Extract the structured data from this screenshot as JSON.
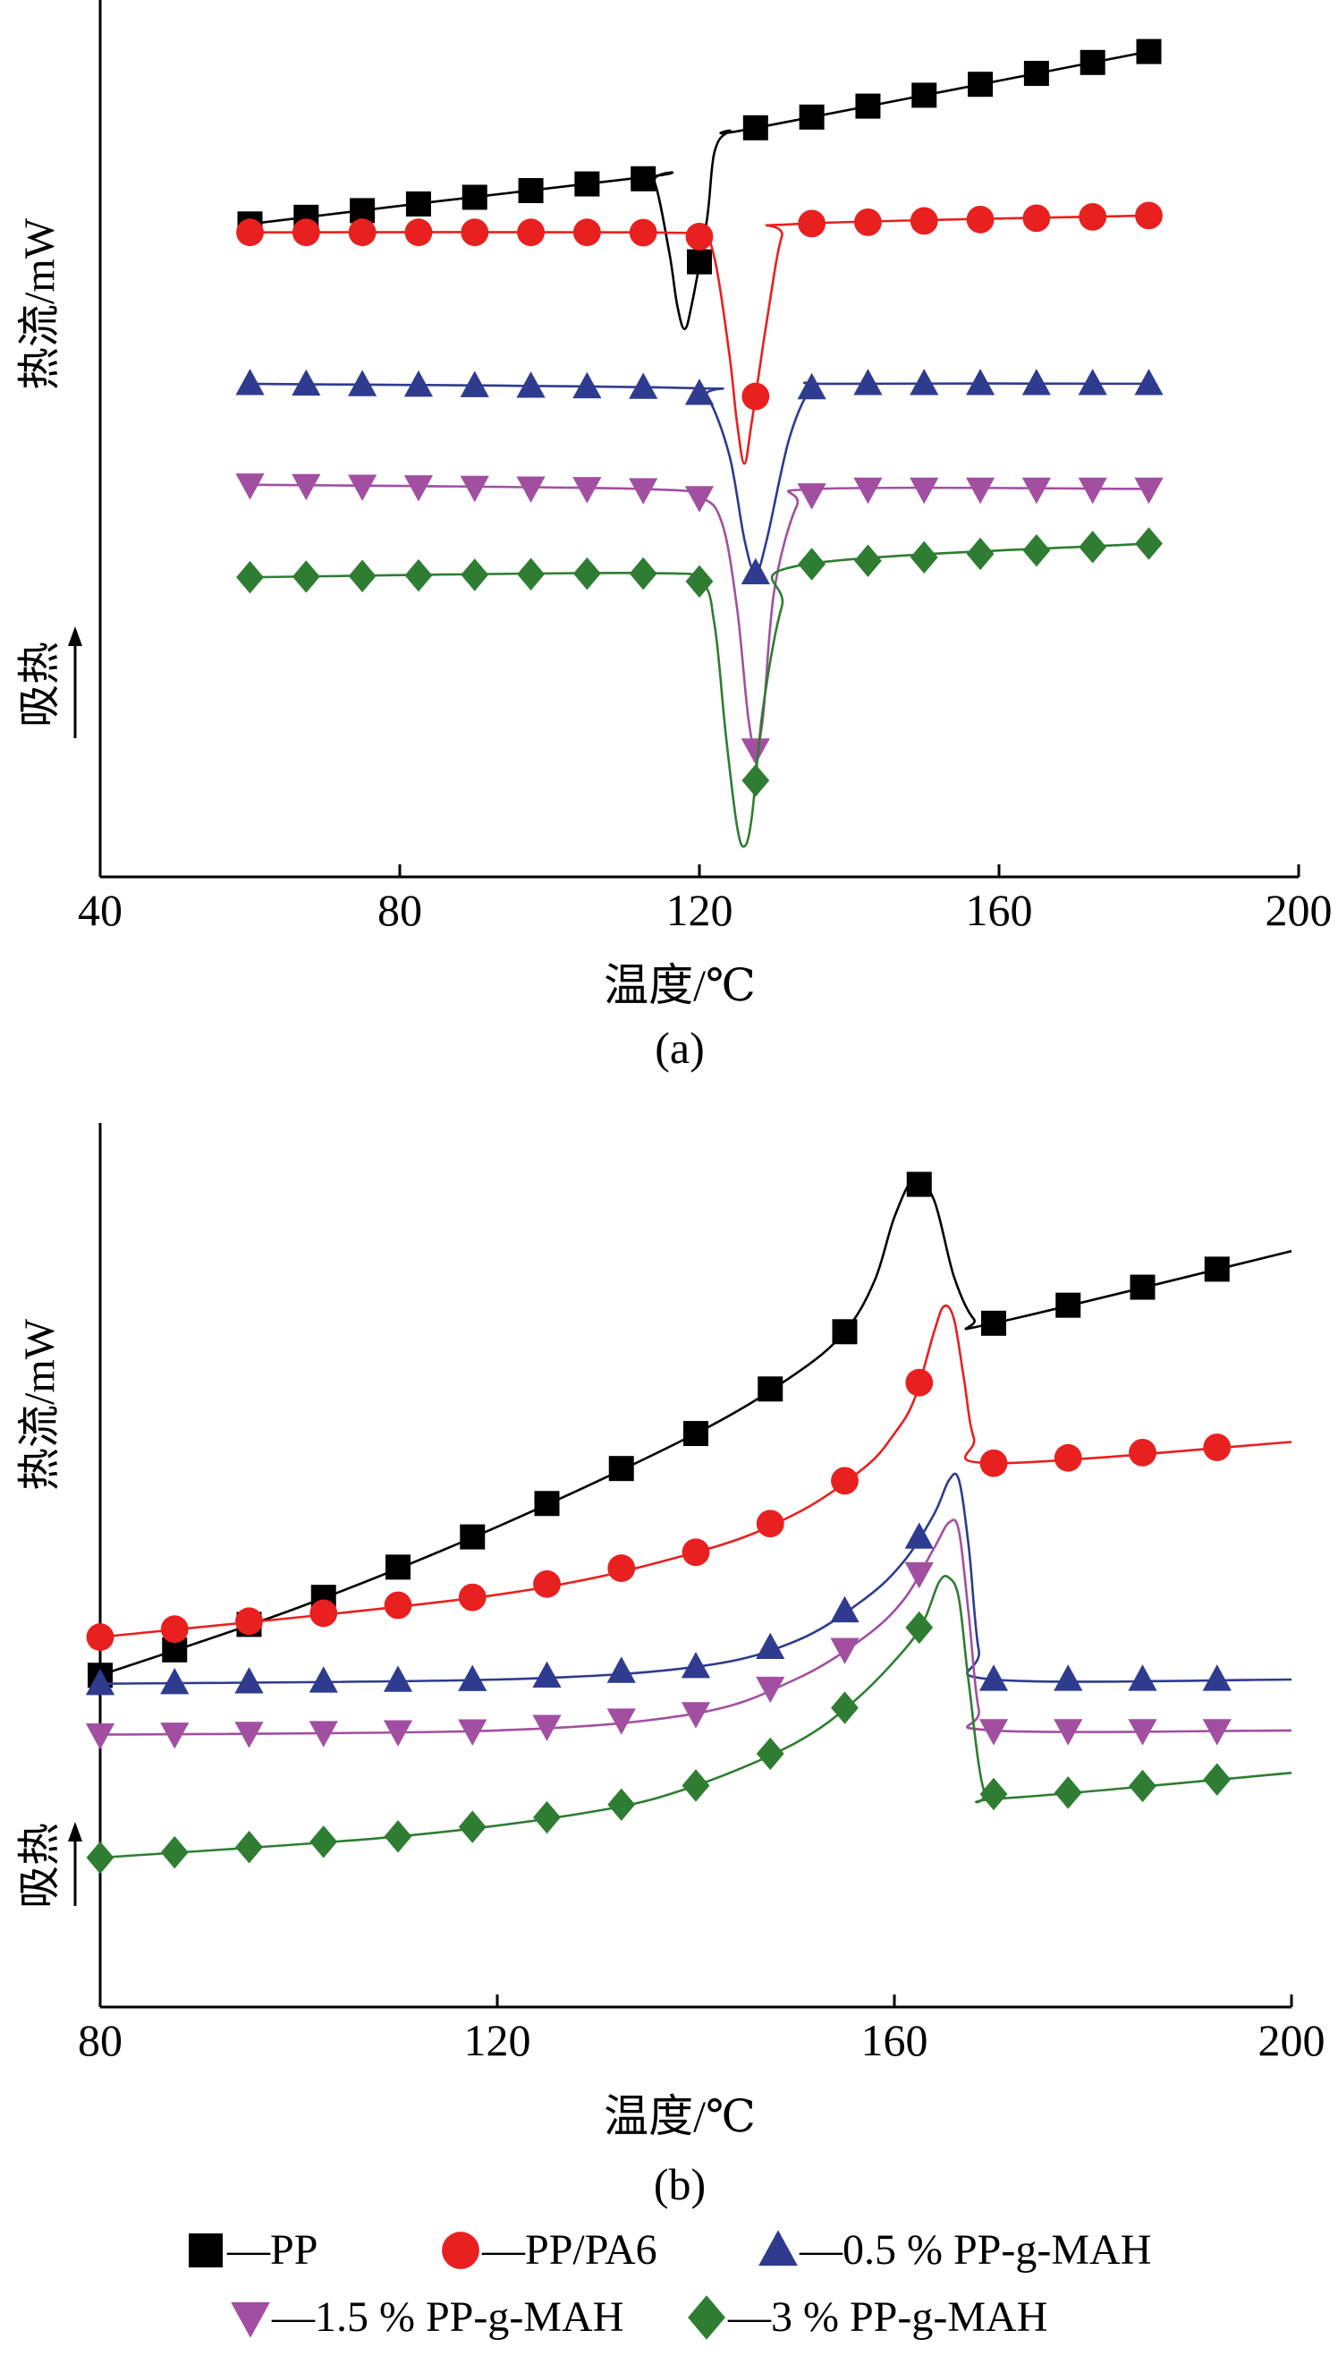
{
  "colors": {
    "PP": "#000000",
    "PP/PA6": "#e8201f",
    "0.5 % PP-g-MAH": "#2e3b8f",
    "1.5 % PP-g-MAH": "#a24fa1",
    "3 % PP-g-MAH": "#2e7d32"
  },
  "markers": {
    "PP": "square",
    "PP/PA6": "circle",
    "0.5 % PP-g-MAH": "triangle-up",
    "1.5 % PP-g-MAH": "triangle-down",
    "3 % PP-g-MAH": "diamond"
  },
  "legend": {
    "entries": [
      "PP",
      "PP/PA6",
      "0.5 % PP-g-MAH",
      "1.5 % PP-g-MAH",
      "3 % PP-g-MAH"
    ],
    "prefix": "—"
  },
  "chart_data": [
    {
      "type": "line",
      "panel": "(a)",
      "xlabel": "温度/℃",
      "ylabel": "热流/mW",
      "endo_label": "吸热",
      "xlim": [
        40,
        200
      ],
      "xticks": [
        40,
        80,
        120,
        160,
        200
      ],
      "ylim": [
        0,
        1
      ],
      "y_tick_labels": false,
      "grid": false,
      "series": [
        {
          "name": "PP",
          "points": [
            [
              60,
              0.755
            ],
            [
              112,
              0.81
            ],
            [
              114,
              0.805
            ],
            [
              116,
              0.72
            ],
            [
              117,
              0.66
            ],
            [
              118,
              0.63
            ],
            [
              119,
              0.66
            ],
            [
              121,
              0.76
            ],
            [
              122,
              0.84
            ],
            [
              124,
              0.865
            ],
            [
              128,
              0.87
            ],
            [
              180,
              0.96
            ]
          ],
          "marker_x": [
            60,
            67.5,
            75,
            82.5,
            90,
            97.5,
            105,
            112.5,
            120,
            127.5,
            135,
            142.5,
            150,
            157.5,
            165,
            172.5,
            180
          ]
        },
        {
          "name": "PP/PA6",
          "points": [
            [
              60,
              0.745
            ],
            [
              112,
              0.745
            ],
            [
              120,
              0.74
            ],
            [
              122,
              0.715
            ],
            [
              124,
              0.6
            ],
            [
              125,
              0.52
            ],
            [
              126,
              0.47
            ],
            [
              127,
              0.52
            ],
            [
              129,
              0.64
            ],
            [
              131,
              0.74
            ],
            [
              133,
              0.755
            ],
            [
              180,
              0.765
            ]
          ],
          "marker_x": [
            60,
            67.5,
            75,
            82.5,
            90,
            97.5,
            105,
            112.5,
            120,
            127.5,
            135,
            142.5,
            150,
            157.5,
            165,
            172.5,
            180
          ]
        },
        {
          "name": "0.5 % PP-g-MAH",
          "points": [
            [
              60,
              0.565
            ],
            [
              118,
              0.56
            ],
            [
              121,
              0.55
            ],
            [
              124,
              0.48
            ],
            [
              126,
              0.38
            ],
            [
              127.5,
              0.34
            ],
            [
              129,
              0.38
            ],
            [
              132,
              0.5
            ],
            [
              135,
              0.56
            ],
            [
              138,
              0.565
            ],
            [
              180,
              0.565
            ]
          ],
          "marker_x": [
            60,
            67.5,
            75,
            82.5,
            90,
            97.5,
            105,
            112.5,
            120,
            127.5,
            135,
            142.5,
            150,
            157.5,
            165,
            172.5,
            180
          ]
        },
        {
          "name": "1.5 % PP-g-MAH",
          "points": [
            [
              60,
              0.445
            ],
            [
              112,
              0.44
            ],
            [
              120,
              0.43
            ],
            [
              123,
              0.4
            ],
            [
              125,
              0.3
            ],
            [
              126.5,
              0.17
            ],
            [
              127.5,
              0.13
            ],
            [
              128.5,
              0.17
            ],
            [
              130,
              0.32
            ],
            [
              133,
              0.42
            ],
            [
              136,
              0.44
            ],
            [
              180,
              0.44
            ]
          ],
          "marker_x": [
            60,
            67.5,
            75,
            82.5,
            90,
            97.5,
            105,
            112.5,
            120,
            127.5,
            135,
            142.5,
            150,
            157.5,
            165,
            172.5,
            180
          ]
        },
        {
          "name": "3 % PP-g-MAH",
          "points": [
            [
              60,
              0.335
            ],
            [
              112,
              0.34
            ],
            [
              120,
              0.33
            ],
            [
              122,
              0.28
            ],
            [
              123.5,
              0.15
            ],
            [
              125,
              0.04
            ],
            [
              126,
              0.015
            ],
            [
              127,
              0.05
            ],
            [
              128.5,
              0.18
            ],
            [
              131,
              0.3
            ],
            [
              134,
              0.35
            ],
            [
              180,
              0.375
            ]
          ],
          "marker_x": [
            60,
            67.5,
            75,
            82.5,
            90,
            97.5,
            105,
            112.5,
            120,
            127.5,
            135,
            142.5,
            150,
            157.5,
            165,
            172.5,
            180
          ]
        }
      ]
    },
    {
      "type": "line",
      "panel": "(b)",
      "xlabel": "温度/℃",
      "ylabel": "热流/mW",
      "endo_label": "吸热",
      "xlim": [
        80,
        200
      ],
      "xticks": [
        80,
        120,
        160,
        200
      ],
      "ylim": [
        0,
        1
      ],
      "y_tick_labels": false,
      "grid": false,
      "series": [
        {
          "name": "PP",
          "points": [
            [
              80,
              0.37
            ],
            [
              100,
              0.45
            ],
            [
              120,
              0.545
            ],
            [
              140,
              0.655
            ],
            [
              150,
              0.725
            ],
            [
              155,
              0.775
            ],
            [
              158,
              0.835
            ],
            [
              160,
              0.91
            ],
            [
              162,
              0.955
            ],
            [
              164,
              0.93
            ],
            [
              166,
              0.84
            ],
            [
              168,
              0.79
            ],
            [
              170,
              0.785
            ],
            [
              200,
              0.87
            ]
          ],
          "marker_x": [
            80,
            87.5,
            95,
            102.5,
            110,
            117.5,
            125,
            132.5,
            140,
            147.5,
            155,
            162.5,
            170,
            177.5,
            185,
            192.5
          ]
        },
        {
          "name": "PP/PA6",
          "points": [
            [
              80,
              0.415
            ],
            [
              120,
              0.465
            ],
            [
              140,
              0.515
            ],
            [
              150,
              0.56
            ],
            [
              157,
              0.615
            ],
            [
              160,
              0.655
            ],
            [
              162,
              0.695
            ],
            [
              164,
              0.775
            ],
            [
              165,
              0.805
            ],
            [
              166,
              0.79
            ],
            [
              167,
              0.72
            ],
            [
              168,
              0.65
            ],
            [
              170,
              0.62
            ],
            [
              200,
              0.645
            ]
          ],
          "marker_x": [
            80,
            87.5,
            95,
            102.5,
            110,
            117.5,
            125,
            132.5,
            140,
            147.5,
            155,
            162.5,
            170,
            177.5,
            185,
            192.5
          ]
        },
        {
          "name": "0.5 % PP-g-MAH",
          "points": [
            [
              80,
              0.36
            ],
            [
              120,
              0.365
            ],
            [
              140,
              0.38
            ],
            [
              150,
              0.41
            ],
            [
              157,
              0.46
            ],
            [
              161,
              0.505
            ],
            [
              164,
              0.56
            ],
            [
              165.5,
              0.6
            ],
            [
              166.5,
              0.6
            ],
            [
              167.5,
              0.52
            ],
            [
              168.5,
              0.4
            ],
            [
              170,
              0.365
            ],
            [
              200,
              0.365
            ]
          ],
          "marker_x": [
            80,
            87.5,
            95,
            102.5,
            110,
            117.5,
            125,
            132.5,
            140,
            147.5,
            155,
            162.5,
            170,
            177.5,
            185,
            192.5
          ]
        },
        {
          "name": "1.5 % PP-g-MAH",
          "points": [
            [
              80,
              0.3
            ],
            [
              120,
              0.305
            ],
            [
              140,
              0.325
            ],
            [
              150,
              0.365
            ],
            [
              157,
              0.415
            ],
            [
              161,
              0.46
            ],
            [
              164,
              0.52
            ],
            [
              165.5,
              0.55
            ],
            [
              166.5,
              0.54
            ],
            [
              167.5,
              0.44
            ],
            [
              168.5,
              0.33
            ],
            [
              170,
              0.305
            ],
            [
              200,
              0.305
            ]
          ],
          "marker_x": [
            80,
            87.5,
            95,
            102.5,
            110,
            117.5,
            125,
            132.5,
            140,
            147.5,
            155,
            162.5,
            170,
            177.5,
            185,
            192.5
          ]
        },
        {
          "name": "3 % PP-g-MAH",
          "points": [
            [
              80,
              0.155
            ],
            [
              110,
              0.18
            ],
            [
              130,
              0.21
            ],
            [
              140,
              0.24
            ],
            [
              150,
              0.29
            ],
            [
              156,
              0.34
            ],
            [
              161,
              0.4
            ],
            [
              163,
              0.435
            ],
            [
              164.5,
              0.48
            ],
            [
              165.5,
              0.485
            ],
            [
              166.5,
              0.46
            ],
            [
              167.5,
              0.36
            ],
            [
              169,
              0.235
            ],
            [
              171,
              0.225
            ],
            [
              200,
              0.255
            ]
          ],
          "marker_x": [
            80,
            87.5,
            95,
            102.5,
            110,
            117.5,
            125,
            132.5,
            140,
            147.5,
            155,
            162.5,
            170,
            177.5,
            185,
            192.5
          ]
        }
      ]
    }
  ]
}
